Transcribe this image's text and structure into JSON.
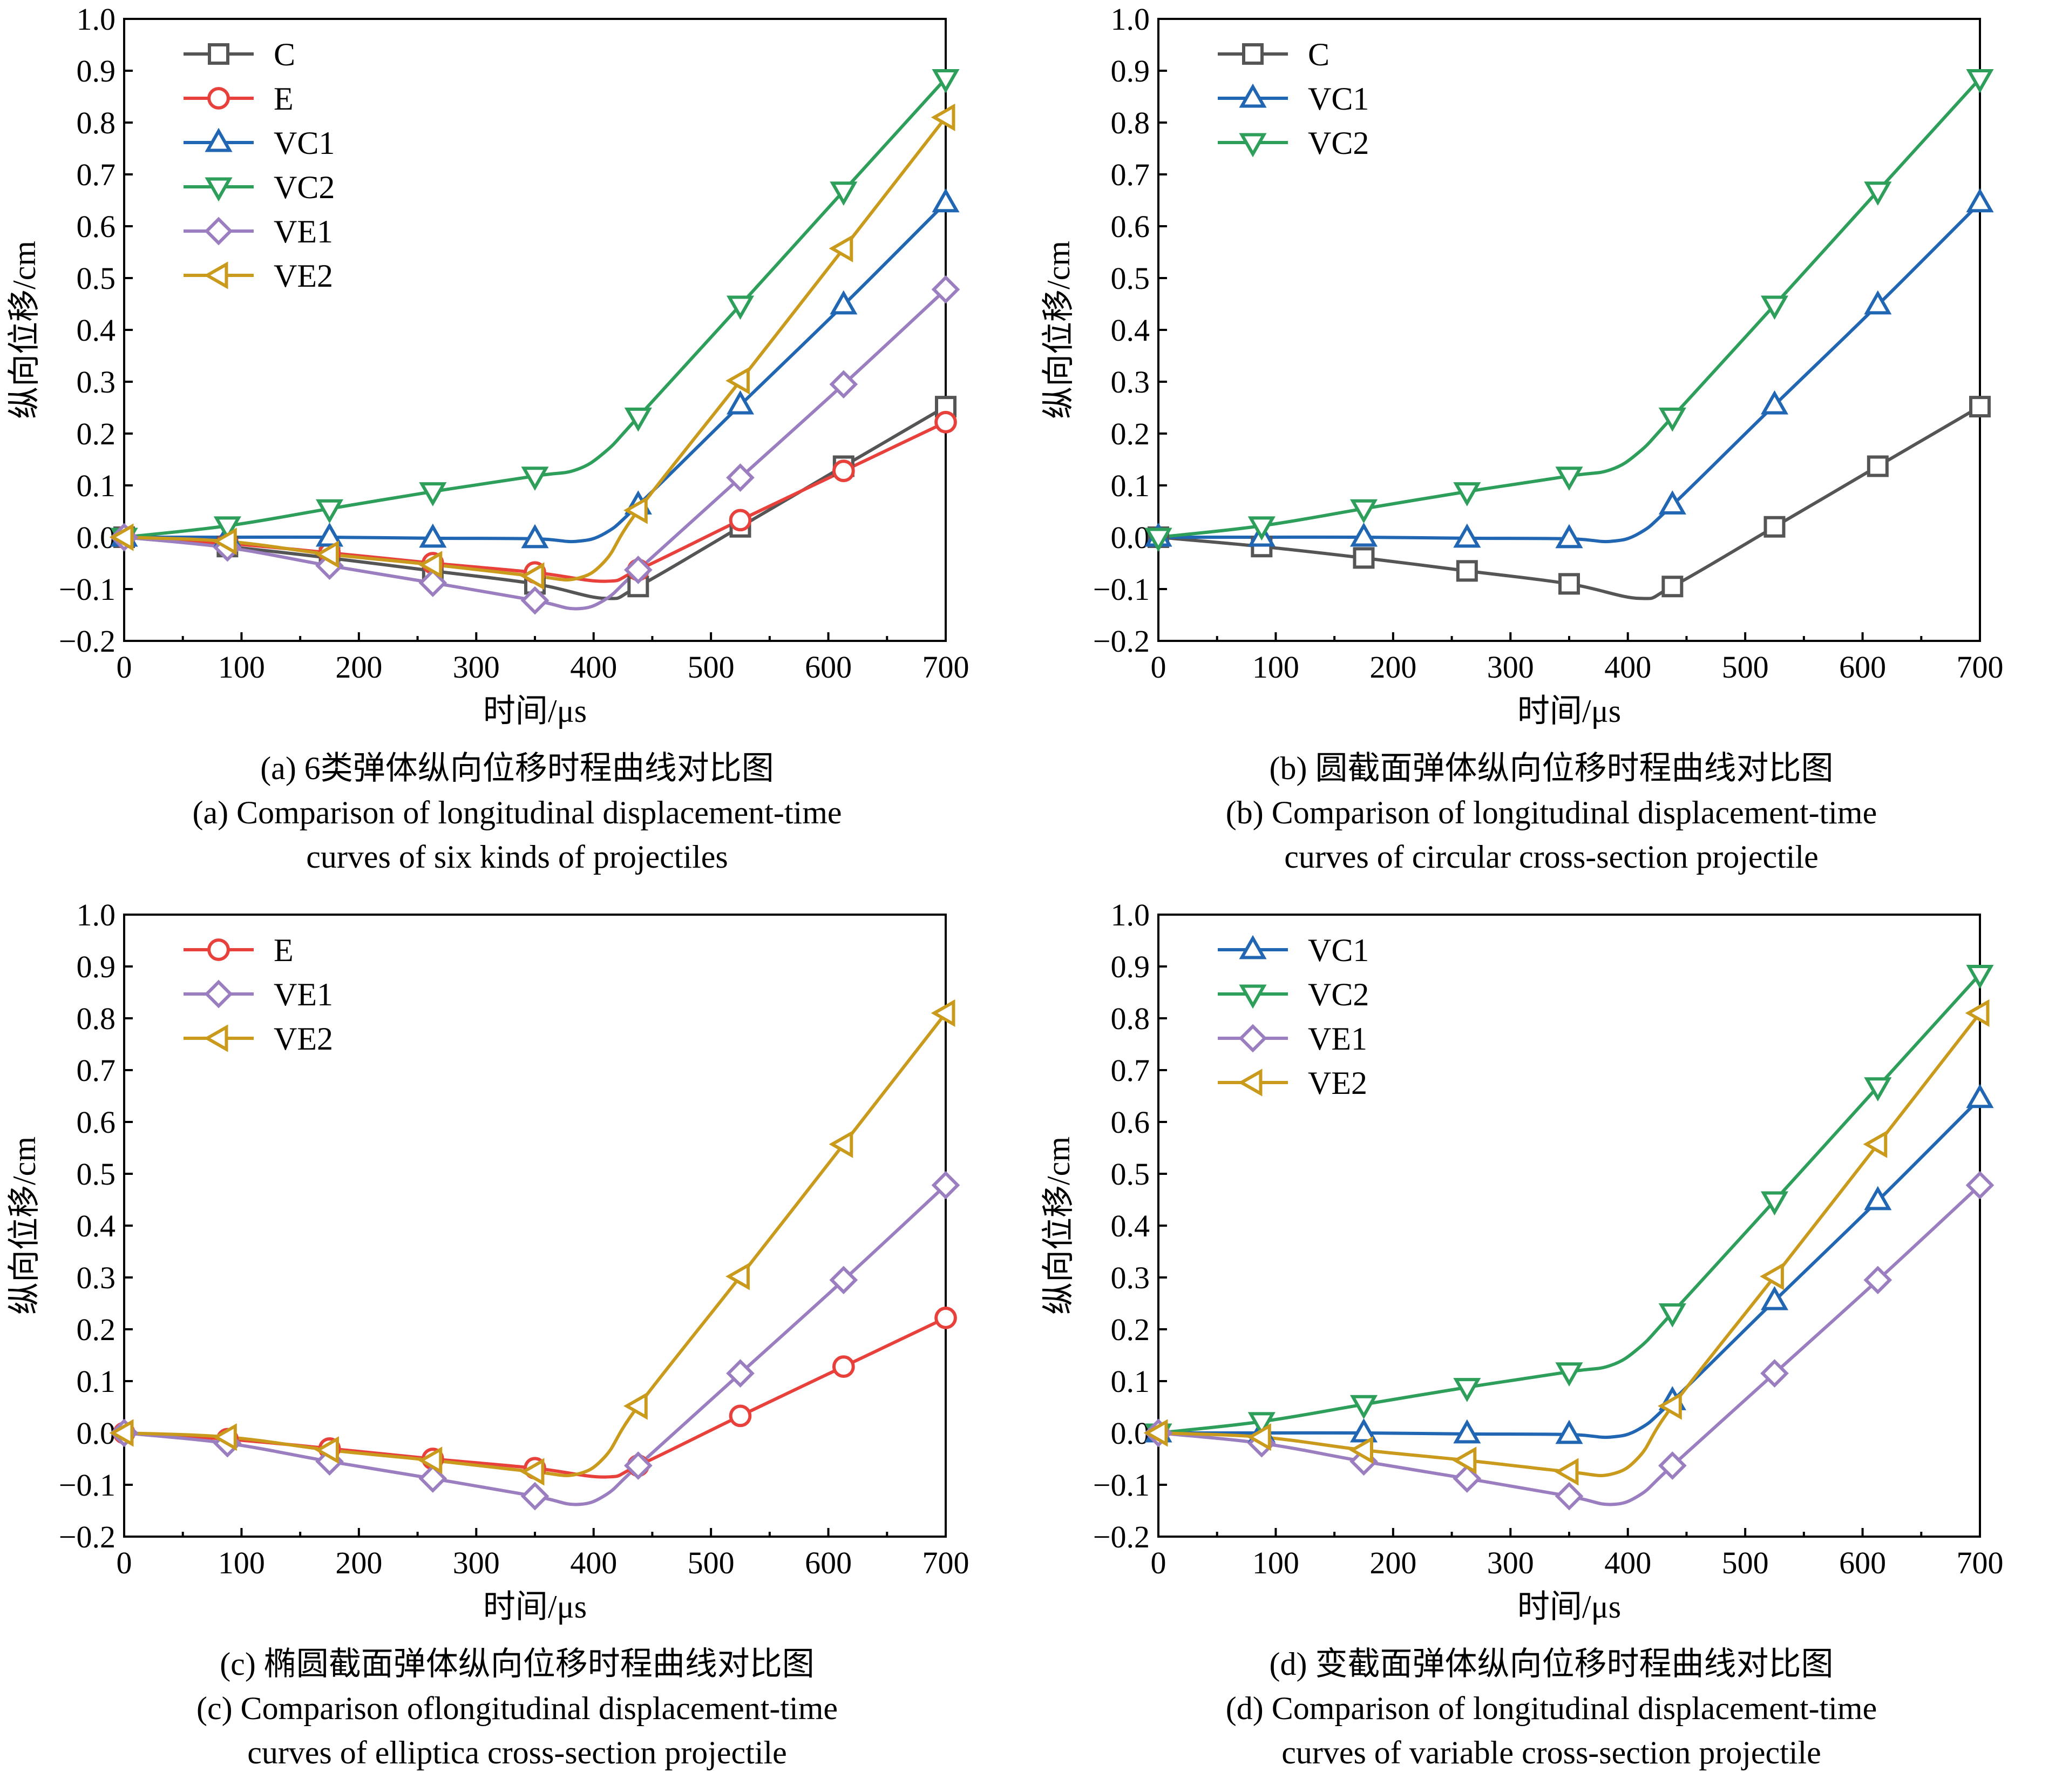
{
  "colors": {
    "C": "#555555",
    "E": "#e8413c",
    "VC1": "#2166b3",
    "VC2": "#2e9e5b",
    "VE1": "#9b7ec0",
    "VE2": "#c99a1b"
  },
  "markers": {
    "C": "square",
    "E": "circle",
    "VC1": "triangle-up",
    "VC2": "triangle-down",
    "VE1": "diamond",
    "VE2": "triangle-left"
  },
  "chart_data": [
    {
      "id": "a",
      "type": "line",
      "xlabel": "时间/μs",
      "ylabel": "纵向位移/cm",
      "xlim": [
        0,
        700
      ],
      "ylim": [
        -0.2,
        1.0
      ],
      "xticks": [
        "0",
        "100",
        "200",
        "300",
        "400",
        "500",
        "600",
        "700"
      ],
      "yticks": [
        "-0.2",
        "-0.1",
        "0.0",
        "0.1",
        "0.2",
        "0.3",
        "0.4",
        "0.5",
        "0.6",
        "0.7",
        "0.8",
        "0.9",
        "1.0"
      ],
      "legend_position": "top-left",
      "caption": [
        "(a) 6类弹体纵向位移时程曲线对比图",
        "(a) Comparison of longitudinal displacement-time",
        "curves of six kinds of projectiles"
      ],
      "series": [
        {
          "name": "C",
          "x": [
            0,
            88,
            175,
            263,
            350,
            410,
            438,
            525,
            613,
            700
          ],
          "y": [
            0,
            -0.018,
            -0.04,
            -0.065,
            -0.09,
            -0.118,
            -0.095,
            0.02,
            0.137,
            0.252
          ]
        },
        {
          "name": "E",
          "x": [
            0,
            88,
            175,
            263,
            350,
            410,
            438,
            525,
            613,
            700
          ],
          "y": [
            0,
            -0.012,
            -0.03,
            -0.05,
            -0.068,
            -0.085,
            -0.063,
            0.033,
            0.128,
            0.222
          ]
        },
        {
          "name": "VC1",
          "x": [
            0,
            88,
            175,
            263,
            350,
            385,
            410,
            438,
            525,
            613,
            700
          ],
          "y": [
            0,
            0,
            0,
            -0.002,
            -0.003,
            -0.008,
            0.008,
            0.062,
            0.255,
            0.448,
            0.645
          ]
        },
        {
          "name": "VC2",
          "x": [
            0,
            88,
            175,
            263,
            350,
            385,
            410,
            438,
            525,
            613,
            700
          ],
          "y": [
            0,
            0.022,
            0.055,
            0.088,
            0.118,
            0.13,
            0.165,
            0.232,
            0.448,
            0.668,
            0.885
          ]
        },
        {
          "name": "VE1",
          "x": [
            0,
            88,
            175,
            263,
            350,
            385,
            410,
            438,
            525,
            613,
            700
          ],
          "y": [
            0,
            -0.02,
            -0.055,
            -0.088,
            -0.122,
            -0.138,
            -0.12,
            -0.063,
            0.115,
            0.295,
            0.478
          ]
        },
        {
          "name": "VE2",
          "x": [
            0,
            88,
            175,
            263,
            350,
            385,
            410,
            438,
            525,
            613,
            700
          ],
          "y": [
            0,
            -0.008,
            -0.033,
            -0.053,
            -0.075,
            -0.08,
            -0.045,
            0.052,
            0.302,
            0.557,
            0.81
          ]
        }
      ]
    },
    {
      "id": "b",
      "type": "line",
      "xlabel": "时间/μs",
      "ylabel": "纵向位移/cm",
      "xlim": [
        0,
        700
      ],
      "ylim": [
        -0.2,
        1.0
      ],
      "xticks": [
        "0",
        "100",
        "200",
        "300",
        "400",
        "500",
        "600",
        "700"
      ],
      "yticks": [
        "-0.2",
        "-0.1",
        "0.0",
        "0.1",
        "0.2",
        "0.3",
        "0.4",
        "0.5",
        "0.6",
        "0.7",
        "0.8",
        "0.9",
        "1.0"
      ],
      "legend_position": "top-left",
      "caption": [
        "(b) 圆截面弹体纵向位移时程曲线对比图",
        "(b) Comparison  of  longitudinal displacement-time",
        "curves of circular cross-section projectile"
      ],
      "series": [
        {
          "name": "C",
          "x": [
            0,
            88,
            175,
            263,
            350,
            410,
            438,
            525,
            613,
            700
          ],
          "y": [
            0,
            -0.018,
            -0.04,
            -0.065,
            -0.09,
            -0.118,
            -0.095,
            0.02,
            0.137,
            0.252
          ]
        },
        {
          "name": "VC1",
          "x": [
            0,
            88,
            175,
            263,
            350,
            385,
            410,
            438,
            525,
            613,
            700
          ],
          "y": [
            0,
            0,
            0,
            -0.002,
            -0.003,
            -0.008,
            0.008,
            0.062,
            0.255,
            0.448,
            0.645
          ]
        },
        {
          "name": "VC2",
          "x": [
            0,
            88,
            175,
            263,
            350,
            385,
            410,
            438,
            525,
            613,
            700
          ],
          "y": [
            0,
            0.022,
            0.055,
            0.088,
            0.118,
            0.13,
            0.165,
            0.232,
            0.448,
            0.668,
            0.885
          ]
        }
      ]
    },
    {
      "id": "c",
      "type": "line",
      "xlabel": "时间/μs",
      "ylabel": "纵向位移/cm",
      "xlim": [
        0,
        700
      ],
      "ylim": [
        -0.2,
        1.0
      ],
      "xticks": [
        "0",
        "100",
        "200",
        "300",
        "400",
        "500",
        "600",
        "700"
      ],
      "yticks": [
        "-0.2",
        "-0.1",
        "0.0",
        "0.1",
        "0.2",
        "0.3",
        "0.4",
        "0.5",
        "0.6",
        "0.7",
        "0.8",
        "0.9",
        "1.0"
      ],
      "legend_position": "top-left",
      "caption": [
        "(c) 椭圆截面弹体纵向位移时程曲线对比图",
        "(c) Comparison oflongitudinal displacement-time",
        "curves  of elliptica cross-section projectile"
      ],
      "series": [
        {
          "name": "E",
          "x": [
            0,
            88,
            175,
            263,
            350,
            410,
            438,
            525,
            613,
            700
          ],
          "y": [
            0,
            -0.012,
            -0.03,
            -0.05,
            -0.068,
            -0.085,
            -0.063,
            0.033,
            0.128,
            0.222
          ]
        },
        {
          "name": "VE1",
          "x": [
            0,
            88,
            175,
            263,
            350,
            385,
            410,
            438,
            525,
            613,
            700
          ],
          "y": [
            0,
            -0.02,
            -0.055,
            -0.088,
            -0.122,
            -0.138,
            -0.12,
            -0.063,
            0.115,
            0.295,
            0.478
          ]
        },
        {
          "name": "VE2",
          "x": [
            0,
            88,
            175,
            263,
            350,
            385,
            410,
            438,
            525,
            613,
            700
          ],
          "y": [
            0,
            -0.008,
            -0.033,
            -0.053,
            -0.075,
            -0.08,
            -0.045,
            0.052,
            0.302,
            0.557,
            0.81
          ]
        }
      ]
    },
    {
      "id": "d",
      "type": "line",
      "xlabel": "时间/μs",
      "ylabel": "纵向位移/cm",
      "xlim": [
        0,
        700
      ],
      "ylim": [
        -0.2,
        1.0
      ],
      "xticks": [
        "0",
        "100",
        "200",
        "300",
        "400",
        "500",
        "600",
        "700"
      ],
      "yticks": [
        "-0.2",
        "-0.1",
        "0.0",
        "0.1",
        "0.2",
        "0.3",
        "0.4",
        "0.5",
        "0.6",
        "0.7",
        "0.8",
        "0.9",
        "1.0"
      ],
      "legend_position": "top-left",
      "caption": [
        "(d) 变截面弹体纵向位移时程曲线对比图",
        "(d) Comparison  of longitudinal displacement-time",
        "curves  of variable cross-section projectile"
      ],
      "series": [
        {
          "name": "VC1",
          "x": [
            0,
            88,
            175,
            263,
            350,
            385,
            410,
            438,
            525,
            613,
            700
          ],
          "y": [
            0,
            0,
            0,
            -0.002,
            -0.003,
            -0.008,
            0.008,
            0.062,
            0.255,
            0.448,
            0.645
          ]
        },
        {
          "name": "VC2",
          "x": [
            0,
            88,
            175,
            263,
            350,
            385,
            410,
            438,
            525,
            613,
            700
          ],
          "y": [
            0,
            0.022,
            0.055,
            0.088,
            0.118,
            0.13,
            0.165,
            0.232,
            0.448,
            0.668,
            0.885
          ]
        },
        {
          "name": "VE1",
          "x": [
            0,
            88,
            175,
            263,
            350,
            385,
            410,
            438,
            525,
            613,
            700
          ],
          "y": [
            0,
            -0.02,
            -0.055,
            -0.088,
            -0.122,
            -0.138,
            -0.12,
            -0.063,
            0.115,
            0.295,
            0.478
          ]
        },
        {
          "name": "VE2",
          "x": [
            0,
            88,
            175,
            263,
            350,
            385,
            410,
            438,
            525,
            613,
            700
          ],
          "y": [
            0,
            -0.008,
            -0.033,
            -0.053,
            -0.075,
            -0.08,
            -0.045,
            0.052,
            0.302,
            0.557,
            0.81
          ]
        }
      ]
    }
  ]
}
